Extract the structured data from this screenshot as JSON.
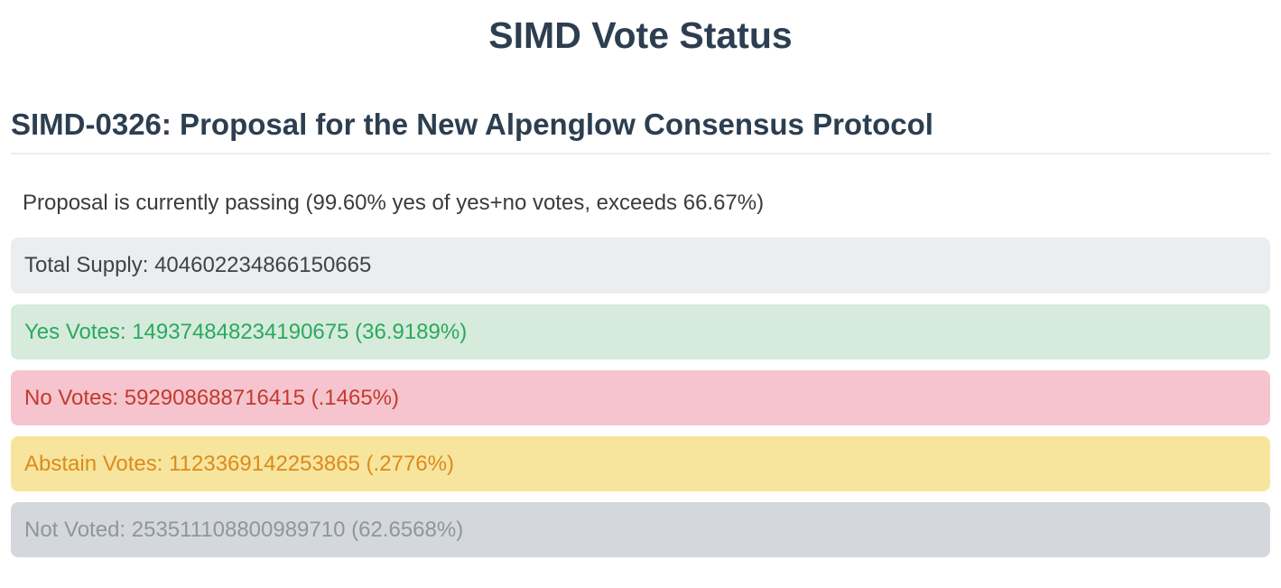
{
  "theme": {
    "heading_color": "#2c3e50",
    "body_text_color": "#3b3b3b"
  },
  "page": {
    "title": "SIMD Vote Status"
  },
  "proposal": {
    "heading": "SIMD-0326: Proposal for the New Alpenglow Consensus Protocol",
    "status_text": "Proposal is currently passing (99.60% yes of yes+no votes, exceeds 66.67%)",
    "yes_of_yes_no_percent": "99.60%",
    "threshold_percent": "66.67%"
  },
  "vote_stats": {
    "rows": [
      {
        "key": "total-supply",
        "label": "Total Supply",
        "value": "404602234866150665",
        "percent": "",
        "display": "Total Supply: 404602234866150665",
        "bg": "#ebeef0",
        "fg": "#3f4345"
      },
      {
        "key": "yes-votes",
        "label": "Yes Votes",
        "value": "149374848234190675",
        "percent": "36.9189%",
        "display": "Yes Votes: 149374848234190675 (36.9189%)",
        "bg": "#d6ebdc",
        "fg": "#2aa95d"
      },
      {
        "key": "no-votes",
        "label": "No Votes",
        "value": "592908688716415",
        "percent": ".1465%",
        "display": "No Votes: 592908688716415 (.1465%)",
        "bg": "#f5c4ce",
        "fg": "#c23b2d"
      },
      {
        "key": "abstain-votes",
        "label": "Abstain Votes",
        "value": "1123369142253865",
        "percent": ".2776%",
        "display": "Abstain Votes: 1123369142253865 (.2776%)",
        "bg": "#f7e59d",
        "fg": "#dd8a1d"
      },
      {
        "key": "not-voted",
        "label": "Not Voted",
        "value": "253511108800989710",
        "percent": "62.6568%",
        "display": "Not Voted: 253511108800989710 (62.6568%)",
        "bg": "#d4d8dd",
        "fg": "#8d979c"
      }
    ]
  },
  "chart_data": {
    "type": "bar",
    "title": "SIMD Vote Status",
    "categories": [
      "Total Supply",
      "Yes Votes",
      "No Votes",
      "Abstain Votes",
      "Not Voted"
    ],
    "values": [
      404602234866150665,
      149374848234190675,
      592908688716415,
      1123369142253865,
      253511108800989710
    ],
    "percents": [
      null,
      36.9189,
      0.1465,
      0.2776,
      62.6568
    ]
  }
}
